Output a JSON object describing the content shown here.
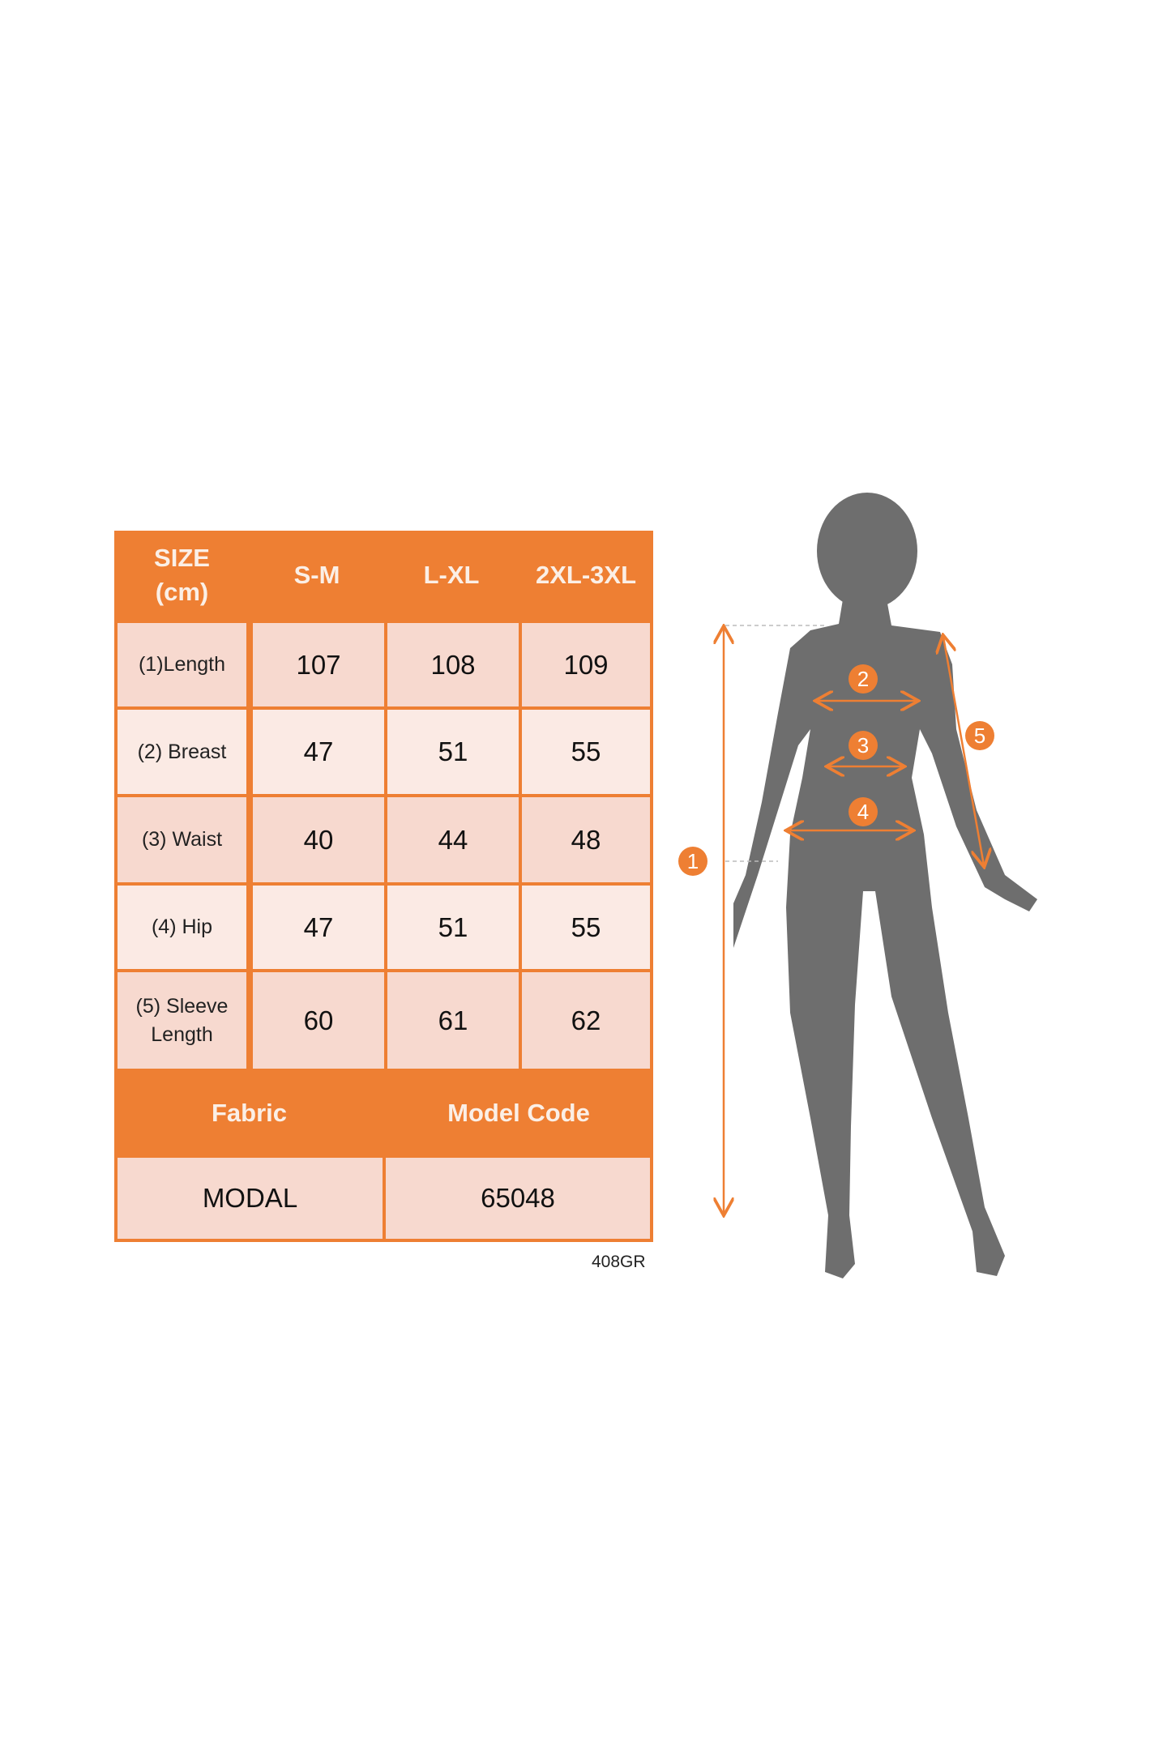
{
  "size_chart": {
    "header": {
      "size_label": "SIZE",
      "unit_label": "(cm)",
      "sizes": [
        "S-M",
        "L-XL",
        "2XL-3XL"
      ]
    },
    "rows": [
      {
        "label": "(1)Length",
        "values": [
          "107",
          "108",
          "109"
        ]
      },
      {
        "label": "(2) Breast",
        "values": [
          "47",
          "51",
          "55"
        ]
      },
      {
        "label": "(3) Waist",
        "values": [
          "40",
          "44",
          "48"
        ]
      },
      {
        "label": "(4) Hip",
        "values": [
          "47",
          "51",
          "55"
        ]
      },
      {
        "label_line1": "(5) Sleeve",
        "label_line2": "Length",
        "values": [
          "60",
          "61",
          "62"
        ]
      }
    ],
    "footer_headers": {
      "fabric": "Fabric",
      "model_code": "Model Code"
    },
    "footer_values": {
      "fabric": "MODAL",
      "model_code": "65048"
    }
  },
  "product_code": "408GR",
  "figure": {
    "markers": [
      "1",
      "2",
      "3",
      "4",
      "5"
    ]
  },
  "colors": {
    "accent": "#ee7f33",
    "cell_dark": "#f7d9cf",
    "cell_light": "#fbeae4",
    "silhouette": "#6e6e6e"
  }
}
